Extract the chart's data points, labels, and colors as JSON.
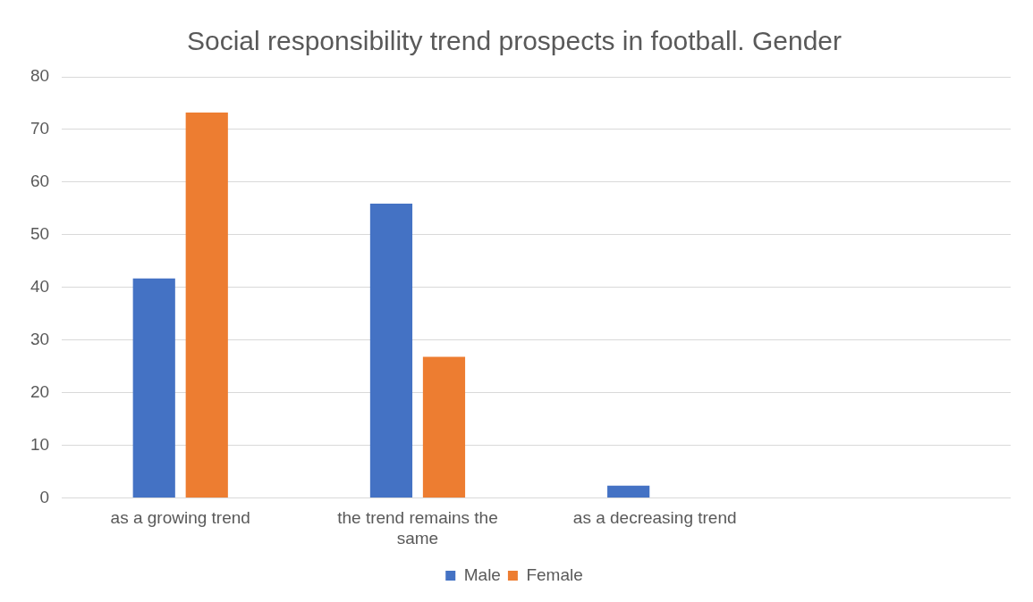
{
  "chart_data": {
    "type": "bar",
    "title": "Social responsibility trend prospects in football. Gender",
    "categories": [
      "as a growing trend",
      "the trend remains the same",
      "as a decreasing trend",
      null
    ],
    "series": [
      {
        "name": "Male",
        "color": "#4472c4",
        "values": [
          41.7,
          55.9,
          2.3,
          null
        ]
      },
      {
        "name": "Female",
        "color": "#ed7d31",
        "values": [
          73.2,
          26.8,
          0,
          null
        ]
      }
    ],
    "ylim": [
      0,
      80
    ],
    "yticks": [
      0,
      10,
      20,
      30,
      40,
      50,
      60,
      70,
      80
    ],
    "grid": "y",
    "legend": "bottom"
  }
}
